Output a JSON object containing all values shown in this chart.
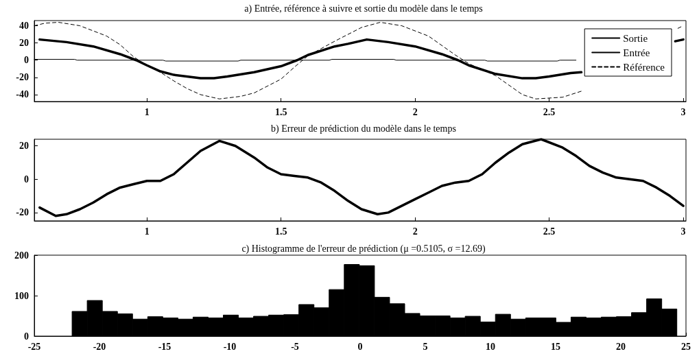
{
  "chart_data": [
    {
      "type": "line",
      "title": "a) Entrée, référence à suivre et sortie du modèle dans le temps",
      "xlim": [
        0.58,
        3.01
      ],
      "xticks": [
        1,
        1.5,
        2,
        2.5,
        3
      ],
      "ylim": [
        -48,
        46
      ],
      "yticks": [
        -40,
        -20,
        0,
        20,
        40
      ],
      "legend": "top right",
      "series": [
        {
          "name": "Sortie",
          "color": "#000000",
          "line_style": "solid",
          "x": [
            0.6,
            0.7,
            0.8,
            0.9,
            0.96,
            1.0,
            1.05,
            1.1,
            1.2,
            1.25,
            1.3,
            1.4,
            1.5,
            1.56,
            1.6,
            1.7,
            1.75,
            1.82,
            1.9,
            2.0,
            2.1,
            2.16,
            2.2,
            2.3,
            2.4,
            2.45,
            2.5,
            2.58,
            2.62,
            2.7,
            2.97,
            3.0
          ],
          "values": [
            24,
            21,
            16,
            7,
            0,
            -6,
            -13,
            -17,
            -21,
            -21,
            -19,
            -14,
            -7,
            0,
            6,
            16,
            19,
            24,
            21,
            16,
            7,
            0,
            -6,
            -16,
            -21,
            -21,
            -19,
            -15,
            -14,
            null,
            22,
            24
          ]
        },
        {
          "name": "Entrée",
          "color": "#000000",
          "line_style": "solid",
          "x": [
            0.58,
            0.73,
            0.74,
            1.06,
            1.07,
            1.34,
            1.35,
            1.68,
            1.69,
            1.92,
            1.93,
            2.26,
            2.27,
            2.53,
            2.54,
            2.6
          ],
          "values": [
            1,
            1,
            0,
            0,
            -1,
            -1,
            0,
            0,
            1,
            1,
            0,
            0,
            -1,
            -1,
            0,
            0
          ]
        },
        {
          "name": "Référence",
          "color": "#000000",
          "line_style": "dashed",
          "x": [
            0.58,
            0.62,
            0.67,
            0.75,
            0.85,
            0.9,
            0.95,
            1.0,
            1.05,
            1.1,
            1.15,
            1.2,
            1.27,
            1.35,
            1.4,
            1.5,
            1.55,
            1.6,
            1.7,
            1.8,
            1.87,
            1.95,
            2.05,
            2.15,
            2.2,
            2.3,
            2.4,
            2.45,
            2.55,
            2.62,
            2.7,
            2.98,
            3.0
          ],
          "values": [
            40,
            43,
            44,
            40,
            28,
            18,
            4,
            -6,
            -14,
            -24,
            -33,
            -40,
            -45,
            -42,
            -38,
            -22,
            -8,
            5,
            22,
            38,
            44,
            40,
            28,
            6,
            -4,
            -18,
            -40,
            -45,
            -43,
            -36,
            null,
            37,
            40
          ]
        }
      ]
    },
    {
      "type": "line",
      "title": "b) Erreur de prédiction du modèle dans le temps",
      "xlim": [
        0.58,
        3.01
      ],
      "xticks": [
        1,
        1.5,
        2,
        2.5,
        3
      ],
      "ylim": [
        -25,
        24
      ],
      "yticks": [
        -20,
        0,
        20
      ],
      "series": [
        {
          "color": "#000000",
          "line_style": "solid",
          "x": [
            0.6,
            0.66,
            0.7,
            0.75,
            0.8,
            0.85,
            0.9,
            0.95,
            1.0,
            1.05,
            1.1,
            1.15,
            1.2,
            1.27,
            1.33,
            1.4,
            1.45,
            1.5,
            1.55,
            1.6,
            1.65,
            1.7,
            1.75,
            1.8,
            1.86,
            1.9,
            1.95,
            2.0,
            2.05,
            2.1,
            2.15,
            2.2,
            2.25,
            2.3,
            2.35,
            2.4,
            2.47,
            2.55,
            2.6,
            2.65,
            2.7,
            2.75,
            2.8,
            2.85,
            2.9,
            2.95,
            3.0
          ],
          "values": [
            -17,
            -22,
            -21,
            -18,
            -14,
            -9,
            -5,
            -3,
            -1,
            -1,
            3,
            10,
            17,
            23,
            20,
            13,
            7,
            3,
            2,
            1,
            -2,
            -7,
            -13,
            -18,
            -21,
            -20,
            -16,
            -12,
            -8,
            -4,
            -2,
            -1,
            3,
            10,
            16,
            21,
            24,
            19,
            14,
            8,
            4,
            1,
            0,
            -1,
            -5,
            -10,
            -16
          ]
        }
      ]
    },
    {
      "type": "histogram",
      "title": "c) Histogramme de l'erreur de prédiction (μ =0.5105, σ =12.69)",
      "color": "#000000",
      "xlim": [
        -25,
        25
      ],
      "xticks": [
        -25,
        -20,
        -15,
        -10,
        -5,
        0,
        5,
        10,
        15,
        20,
        25
      ],
      "ylim": [
        0,
        200
      ],
      "yticks": [
        0,
        100,
        200
      ],
      "bins": [
        -22.1,
        -20.94,
        -19.78,
        -18.62,
        -17.46,
        -16.3,
        -15.14,
        -13.98,
        -12.82,
        -11.66,
        -10.5,
        -9.34,
        -8.18,
        -7.02,
        -5.86,
        -4.7,
        -3.54,
        -2.38,
        -1.22,
        -0.06,
        1.1,
        2.26,
        3.42,
        4.58,
        5.74,
        6.9,
        8.06,
        9.22,
        10.38,
        11.54,
        12.7,
        13.86,
        15.02,
        16.18,
        17.34,
        18.5,
        19.66,
        20.82,
        21.98,
        23.14,
        24.3
      ],
      "values": [
        61,
        88,
        61,
        55,
        42,
        48,
        45,
        42,
        47,
        45,
        52,
        45,
        49,
        52,
        53,
        78,
        70,
        115,
        177,
        174,
        96,
        80,
        56,
        50,
        50,
        45,
        49,
        35,
        54,
        42,
        45,
        45,
        34,
        47,
        45,
        47,
        48,
        58,
        92,
        67
      ]
    }
  ]
}
